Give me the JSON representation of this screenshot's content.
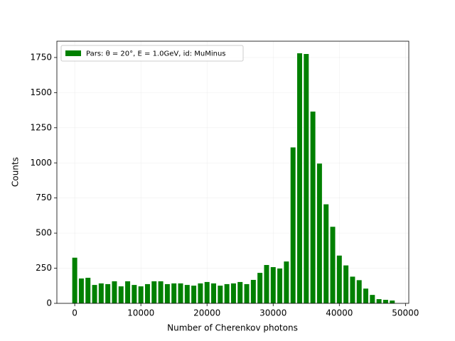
{
  "chart_data": {
    "type": "bar",
    "x": [
      0,
      1000,
      2000,
      3000,
      4000,
      5000,
      6000,
      7000,
      8000,
      9000,
      10000,
      11000,
      12000,
      13000,
      14000,
      15000,
      16000,
      17000,
      18000,
      19000,
      20000,
      21000,
      22000,
      23000,
      24000,
      25000,
      26000,
      27000,
      28000,
      29000,
      30000,
      31000,
      32000,
      33000,
      34000,
      35000,
      36000,
      37000,
      38000,
      39000,
      40000,
      41000,
      42000,
      43000,
      44000,
      45000,
      46000,
      47000,
      48000
    ],
    "series": [
      {
        "name": "Pars: θ = 20°, E = 1.0GeV, id: MuMinus",
        "color": "#008000",
        "values": [
          325,
          177,
          182,
          131,
          142,
          137,
          157,
          121,
          157,
          131,
          121,
          137,
          157,
          157,
          137,
          142,
          142,
          131,
          126,
          142,
          152,
          142,
          126,
          137,
          142,
          152,
          137,
          167,
          217,
          273,
          258,
          248,
          298,
          1110,
          1780,
          1775,
          1365,
          995,
          705,
          545,
          340,
          270,
          190,
          165,
          105,
          60,
          30,
          25,
          20
        ]
      }
    ],
    "xlabel": "Number of Cherenkov photons",
    "ylabel": "Counts",
    "xlim": [
      -2700,
      50500
    ],
    "ylim": [
      0,
      1866
    ],
    "xticks": [
      0,
      10000,
      20000,
      30000,
      40000,
      50000
    ],
    "yticks": [
      0,
      250,
      500,
      750,
      1000,
      1250,
      1500,
      1750
    ],
    "grid": true,
    "legend": "upper left"
  }
}
